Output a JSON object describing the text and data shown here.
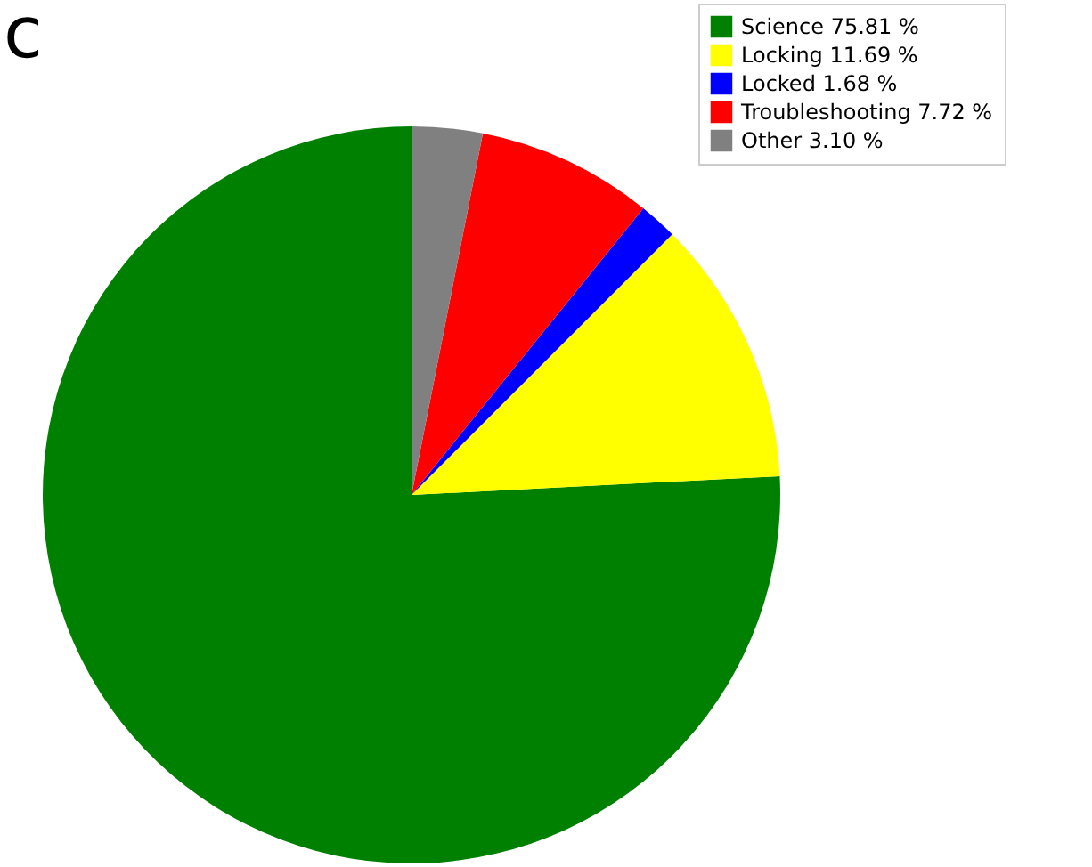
{
  "chart_data": {
    "type": "pie",
    "categories": [
      "Science 75.81 %",
      "Locking 11.69 %",
      "Locked 1.68 %",
      "Troubleshooting 7.72 %",
      "Other 3.10 %"
    ],
    "values": [
      75.81,
      11.69,
      1.68,
      7.72,
      3.1
    ],
    "colors": [
      "#008000",
      "#ffff00",
      "#0000ff",
      "#ff0000",
      "#808080"
    ],
    "legend": "top right",
    "annotations": [
      "c"
    ]
  }
}
